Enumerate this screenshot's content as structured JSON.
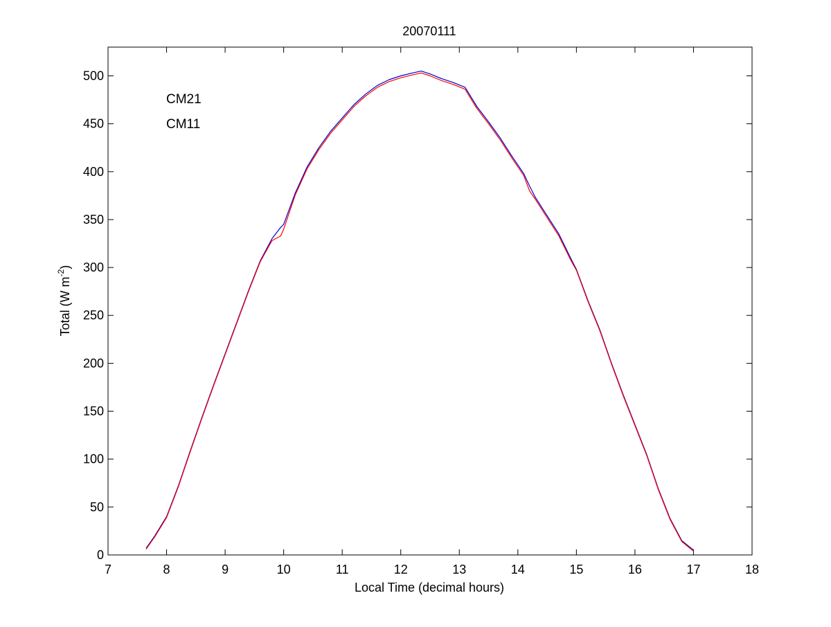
{
  "chart_data": {
    "type": "line",
    "title": "20070111",
    "xlabel": "Local Time (decimal hours)",
    "ylabel": "Total (W m-2)",
    "ylabel_parts": {
      "main": "Total (W m",
      "superscript": "-2",
      "close": ")"
    },
    "xlim": [
      7,
      18
    ],
    "ylim": [
      0,
      530
    ],
    "xticks": [
      7,
      8,
      9,
      10,
      11,
      12,
      13,
      14,
      15,
      16,
      17,
      18
    ],
    "yticks": [
      0,
      50,
      100,
      150,
      200,
      250,
      300,
      350,
      400,
      450,
      500
    ],
    "grid": false,
    "legend": {
      "placement": "top-left",
      "entries": [
        "CM21",
        "CM11"
      ]
    },
    "series": [
      {
        "name": "CM21",
        "color": "#0000cc",
        "x": [
          7.65,
          7.8,
          8.0,
          8.2,
          8.4,
          8.6,
          8.8,
          9.0,
          9.2,
          9.4,
          9.6,
          9.8,
          9.95,
          10.0,
          10.2,
          10.4,
          10.6,
          10.8,
          11.0,
          11.2,
          11.4,
          11.6,
          11.8,
          12.0,
          12.2,
          12.35,
          12.5,
          12.7,
          12.9,
          13.1,
          13.3,
          13.5,
          13.7,
          13.9,
          14.1,
          14.2,
          14.3,
          14.5,
          14.7,
          14.9,
          15.0,
          15.2,
          15.4,
          15.6,
          15.8,
          16.0,
          16.2,
          16.4,
          16.6,
          16.8,
          17.0
        ],
        "y": [
          7,
          20,
          40,
          72,
          108,
          143,
          177,
          210,
          243,
          276,
          307,
          330,
          342,
          345,
          378,
          405,
          425,
          442,
          456,
          470,
          481,
          490,
          496,
          500,
          503,
          505,
          502,
          497,
          493,
          488,
          468,
          452,
          435,
          416,
          398,
          385,
          373,
          354,
          335,
          310,
          298,
          265,
          235,
          200,
          167,
          136,
          105,
          69,
          38,
          15,
          5
        ]
      },
      {
        "name": "CM11",
        "color": "#ff0000",
        "x": [
          7.65,
          7.8,
          8.0,
          8.2,
          8.4,
          8.6,
          8.8,
          9.0,
          9.2,
          9.4,
          9.6,
          9.8,
          9.95,
          10.0,
          10.2,
          10.4,
          10.6,
          10.8,
          11.0,
          11.2,
          11.4,
          11.6,
          11.8,
          12.0,
          12.2,
          12.35,
          12.5,
          12.7,
          12.9,
          13.1,
          13.3,
          13.5,
          13.7,
          13.9,
          14.1,
          14.2,
          14.3,
          14.5,
          14.7,
          14.9,
          15.0,
          15.2,
          15.4,
          15.6,
          15.8,
          16.0,
          16.2,
          16.4,
          16.6,
          16.8,
          17.0
        ],
        "y": [
          6,
          19,
          39,
          71,
          107,
          142,
          176,
          209,
          242,
          275,
          306,
          328,
          333,
          340,
          376,
          403,
          423,
          440,
          454,
          468,
          479,
          488,
          494,
          498,
          501,
          503,
          500,
          495,
          491,
          486,
          466,
          450,
          433,
          414,
          396,
          380,
          371,
          352,
          333,
          308,
          297,
          264,
          234,
          199,
          166,
          135,
          104,
          68,
          37,
          14,
          4
        ]
      }
    ]
  }
}
